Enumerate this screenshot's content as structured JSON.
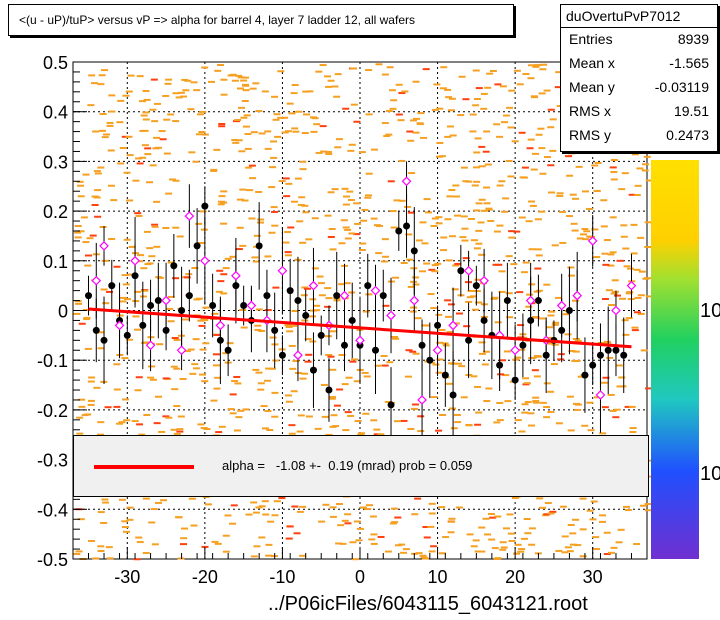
{
  "title": "<(u - uP)/tuP> versus   vP => alpha for barrel 4, layer 7 ladder 12, all wafers",
  "stats": {
    "name": "duOvertuPvP7012",
    "rows": [
      {
        "label": "Entries",
        "value": "8939"
      },
      {
        "label": "Mean x",
        "value": "-1.565"
      },
      {
        "label": "Mean y",
        "value": "-0.03119"
      },
      {
        "label": "RMS x",
        "value": "19.51"
      },
      {
        "label": "RMS y",
        "value": "0.2473"
      }
    ]
  },
  "fit": {
    "text": "alpha =   -1.08 +-  0.19 (mrad) prob = 0.059",
    "color": "#ff0000"
  },
  "footer": "../P06icFiles/6043115_6043121.root",
  "palette_labels": [
    "10",
    "10"
  ],
  "chart_data": {
    "type": "scatter",
    "title": "<(u - uP)/tuP> versus   vP => alpha for barrel 4, layer 7 ladder 12, all wafers",
    "xlim": [
      -37,
      37
    ],
    "ylim": [
      -0.5,
      0.5
    ],
    "x_ticks": [
      -30,
      -20,
      -10,
      0,
      10,
      20,
      30
    ],
    "y_ticks": [
      -0.5,
      -0.4,
      -0.3,
      -0.2,
      -0.1,
      0,
      0.1,
      0.2,
      0.3,
      0.4,
      0.5
    ],
    "y_tick_labels": [
      "-0.5",
      "-0.4",
      "-0.3",
      "-0.2",
      "-0.1",
      "0",
      "0.1",
      "0.2",
      "0.3",
      "0.4",
      "0.5"
    ],
    "grid": true,
    "fit_line": {
      "x": [
        -35,
        35
      ],
      "y": [
        0.003,
        -0.073
      ],
      "color": "#ff0000"
    },
    "series": [
      {
        "marker": "filled-circle",
        "color": "#000000",
        "x": [
          -35,
          -34,
          -33,
          -32,
          -31,
          -30,
          -29,
          -28,
          -27,
          -26,
          -25,
          -24,
          -23,
          -22,
          -21,
          -20,
          -19,
          -18,
          -17,
          -16,
          -15,
          -14,
          -13,
          -12,
          -11,
          -10,
          -9,
          -8,
          -7,
          -6,
          -5,
          -4,
          -3,
          -2,
          -1,
          0,
          1,
          2,
          3,
          4,
          5,
          6,
          7,
          8,
          9,
          10,
          11,
          12,
          13,
          14,
          15,
          16,
          17,
          18,
          19,
          20,
          21,
          22,
          23,
          24,
          25,
          26,
          27,
          28,
          29,
          30,
          31,
          32,
          33,
          34
        ],
        "y": [
          0.03,
          -0.04,
          -0.06,
          0.05,
          -0.02,
          -0.05,
          0.07,
          -0.03,
          0.01,
          0.02,
          -0.04,
          0.09,
          0.0,
          0.03,
          0.13,
          0.21,
          0.01,
          -0.06,
          -0.08,
          0.05,
          0.01,
          -0.02,
          0.13,
          0.03,
          -0.04,
          -0.09,
          0.04,
          0.02,
          -0.01,
          -0.12,
          -0.05,
          -0.16,
          0.03,
          -0.07,
          -0.02,
          -0.07,
          0.05,
          -0.08,
          0.03,
          -0.19,
          0.16,
          0.17,
          0.12,
          -0.07,
          -0.1,
          -0.03,
          -0.13,
          -0.17,
          0.08,
          -0.06,
          0.05,
          -0.02,
          -0.05,
          -0.11,
          0.02,
          -0.14,
          -0.07,
          -0.02,
          0.02,
          -0.09,
          -0.06,
          -0.04,
          0.0,
          0.03,
          -0.13,
          -0.11,
          -0.09,
          -0.08,
          -0.08,
          -0.09
        ]
      },
      {
        "marker": "open-diamond",
        "color": "#ff00ff",
        "x": [
          -34,
          -33,
          -31,
          -29,
          -27,
          -25,
          -23,
          -22,
          -20,
          -18,
          -16,
          -14,
          -12,
          -10,
          -8,
          -6,
          -4,
          -2,
          0,
          2,
          4,
          6,
          7,
          8,
          10,
          12,
          14,
          16,
          18,
          20,
          22,
          24,
          26,
          28,
          30,
          31,
          33,
          35
        ],
        "y": [
          0.06,
          0.13,
          -0.03,
          0.1,
          -0.07,
          0.02,
          -0.08,
          0.19,
          0.1,
          -0.03,
          0.07,
          0.01,
          -0.02,
          0.08,
          -0.09,
          0.05,
          -0.03,
          0.03,
          -0.06,
          0.04,
          -0.01,
          0.26,
          0.02,
          -0.18,
          -0.08,
          -0.03,
          0.08,
          0.06,
          -0.05,
          -0.08,
          0.02,
          -0.06,
          0.01,
          0.03,
          0.14,
          -0.17,
          0.0,
          0.05
        ]
      }
    ]
  }
}
